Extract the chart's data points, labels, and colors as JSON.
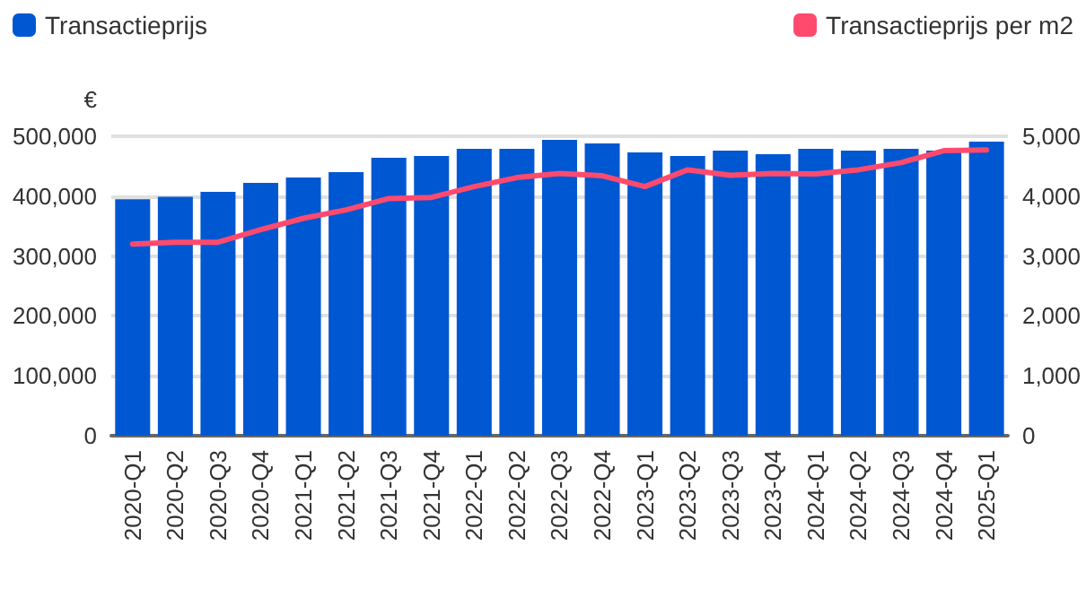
{
  "chart_data": {
    "type": "bar",
    "ylabel": "€",
    "categories": [
      "2020-Q1",
      "2020-Q2",
      "2020-Q3",
      "2020-Q4",
      "2021-Q1",
      "2021-Q2",
      "2021-Q3",
      "2021-Q4",
      "2022-Q1",
      "2022-Q2",
      "2022-Q3",
      "2022-Q4",
      "2023-Q1",
      "2023-Q2",
      "2023-Q3",
      "2023-Q4",
      "2024-Q1",
      "2024-Q2",
      "2024-Q3",
      "2024-Q4",
      "2025-Q1"
    ],
    "series": [
      {
        "name": "Transactieprijs",
        "color": "#0057d2",
        "values": [
          395000,
          399000,
          407000,
          422000,
          431000,
          440000,
          464000,
          467000,
          479000,
          479000,
          494000,
          488000,
          473000,
          467000,
          476000,
          470000,
          479000,
          476000,
          479000,
          476000,
          491000
        ]
      },
      {
        "name": "Transactieprijs per m2",
        "type": "line",
        "axis": "y2",
        "color": "#ff4a6e",
        "values": [
          3200,
          3230,
          3230,
          3440,
          3630,
          3770,
          3960,
          3980,
          4160,
          4310,
          4380,
          4340,
          4160,
          4440,
          4350,
          4380,
          4370,
          4440,
          4560,
          4760,
          4770
        ]
      }
    ],
    "ylim": [
      0,
      500000
    ],
    "yticks": [
      {
        "value": 0,
        "label": "0"
      },
      {
        "value": 100000,
        "label": "100,000"
      },
      {
        "value": 200000,
        "label": "200,000"
      },
      {
        "value": 300000,
        "label": "300,000"
      },
      {
        "value": 400000,
        "label": "400,000"
      },
      {
        "value": 500000,
        "label": "500,000"
      }
    ],
    "y2lim": [
      0,
      5000
    ],
    "y2ticks": [
      {
        "value": 0,
        "label": "0"
      },
      {
        "value": 1000,
        "label": "1,000"
      },
      {
        "value": 2000,
        "label": "2,000"
      },
      {
        "value": 3000,
        "label": "3,000"
      },
      {
        "value": 4000,
        "label": "4,000"
      },
      {
        "value": 5000,
        "label": "5,000"
      }
    ],
    "grid": "y",
    "legend": "top",
    "marker": "none",
    "line_style": "solid"
  }
}
